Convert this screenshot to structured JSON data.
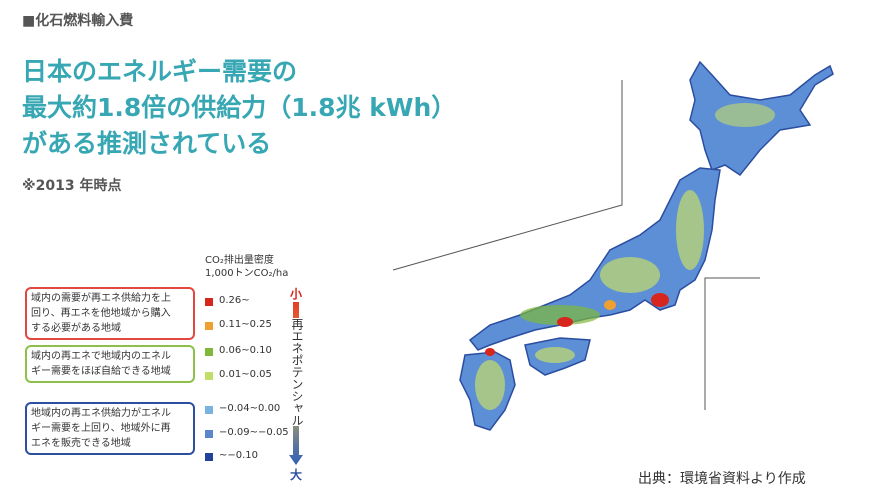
{
  "header": {
    "label": "■化石燃料輸入費",
    "title_lines": [
      "日本のエネルギー需要の",
      "最大約1.8倍の供給力（1.8兆 kWh）",
      "がある推測されている"
    ],
    "note": "※2013 年時点"
  },
  "legend": {
    "title_lines": [
      "CO₂排出量密度",
      "1,000トンCO₂/ha"
    ],
    "groups": [
      {
        "lines": [
          "域内の需要が再エネ供給力を上",
          "回り、再エネを他地域から購入",
          "する必要がある地域"
        ],
        "color": "#e2483f",
        "items": [
          {
            "label": "0.26~",
            "color": "#d7261e"
          },
          {
            "label": "0.11~0.25",
            "color": "#f0a030"
          }
        ]
      },
      {
        "lines": [
          "域内の再エネで地域内のエネル",
          "ギー需要をほぼ自給できる地域"
        ],
        "color": "#8cc04a",
        "items": [
          {
            "label": "0.06~0.10",
            "color": "#7fb83a"
          },
          {
            "label": "0.01~0.05",
            "color": "#c4dc6a"
          }
        ]
      },
      {
        "lines": [
          "地域内の再エネ供給力がエネル",
          "ギー需要を上回り、地域外に再",
          "エネを販売できる地域"
        ],
        "color": "#2d4fa0",
        "items": [
          {
            "label": "−0.04~0.00",
            "color": "#7bb3e0"
          },
          {
            "label": "−0.09~−0.05",
            "color": "#5a86cc"
          },
          {
            "label": "~−0.10",
            "color": "#23429a"
          }
        ]
      }
    ],
    "scale": {
      "low": "小",
      "label": "再エネポテンシャル",
      "high": "大"
    }
  },
  "source": "出典：環境省資料より作成"
}
